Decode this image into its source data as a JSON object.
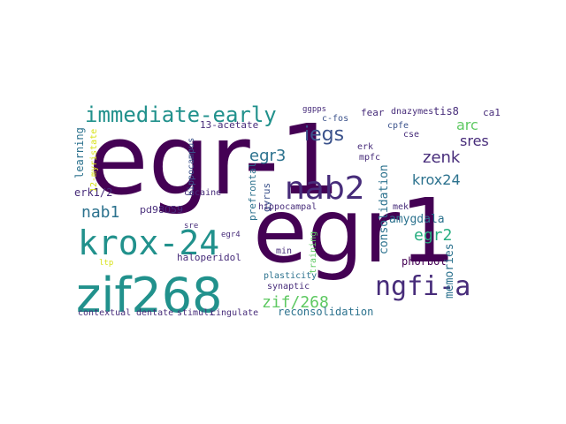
{
  "colors": {
    "purple_dark": "#440154",
    "purple": "#472c7a",
    "indigo": "#3b528b",
    "blue": "#2c728e",
    "teal": "#21918c",
    "green_teal": "#28ae80",
    "green": "#5ec962",
    "lime": "#addc30",
    "yellow": "#d8e219"
  },
  "words": {
    "egr_1": "egr-1",
    "egr1": "egr1",
    "zif268": "zif268",
    "krox_24": "krox-24",
    "nab2": "nab2",
    "ngfi_a": "ngfi-a",
    "immediate_early": "immediate-early",
    "iegs": "iegs",
    "zenk": "zenk",
    "krox24": "krox24",
    "egr3": "egr3",
    "sres": "sres",
    "arc": "arc",
    "egr2": "egr2",
    "zif_268": "zif/268",
    "nab1": "nab1",
    "reconsolidation": "reconsolidation",
    "consolidation": "consolidation",
    "amygdala": "amygdala",
    "memories": "memories",
    "phorbol": "phorbol",
    "hippocampus": "hippocampus",
    "learning": "learning",
    "erk1_2": "erk1/2",
    "pd98059": "pd98059",
    "haloperidol": "haloperidol",
    "plasticity": "plasticity",
    "synaptic": "synaptic",
    "contextual": "contextual",
    "dentate": "dentate",
    "stimuli": "stimuli",
    "cingulate": "cingulate",
    "prefrontal": "prefrontal",
    "gyrus": "gyrus",
    "hippocampal": "hippocampal",
    "training": "training",
    "min": "min",
    "fear": "fear",
    "tis8": "tis8",
    "ca1": "ca1",
    "c_fos": "c-fos",
    "ggpps": "ggpps",
    "acetate": "13-acetate",
    "myristate": "12-myristate",
    "cpfe": "cpfe",
    "dnazymes": "dnazymes",
    "cse": "cse",
    "erk": "erk",
    "mpfc": "mpfc",
    "mek": "mek",
    "cocaine": "cocaine",
    "sre": "sre",
    "egr4": "egr4",
    "ltp": "ltp"
  }
}
